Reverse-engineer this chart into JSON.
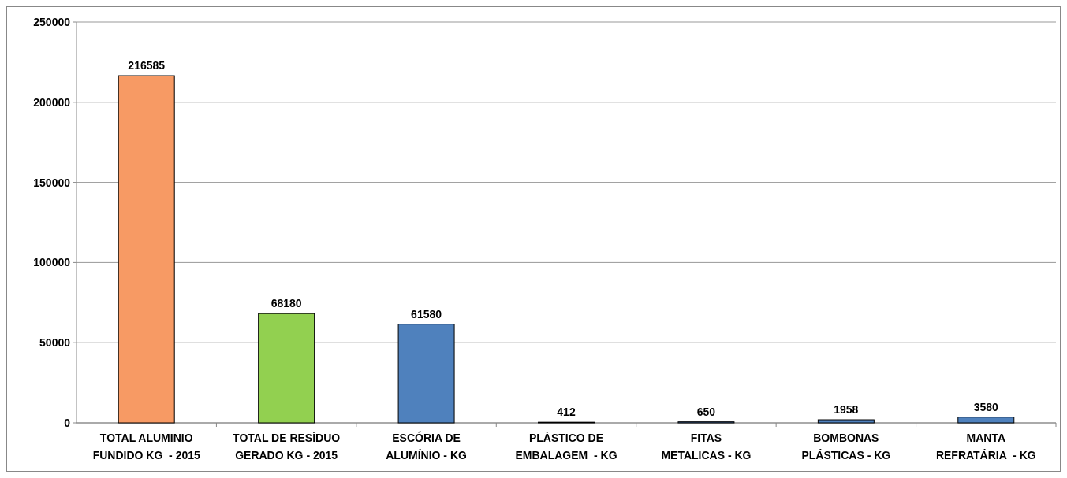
{
  "chart_data": {
    "type": "bar",
    "categories": [
      "TOTAL ALUMINIO\nFUNDIDO KG  - 2015",
      "TOTAL DE RESÍDUO\nGERADO KG - 2015",
      "ESCÓRIA DE\nALUMÍNIO - KG",
      "PLÁSTICO DE\nEMBALAGEM  - KG",
      "FITAS\nMETALICAS - KG",
      "BOMBONAS\nPLÁSTICAS - KG",
      "MANTA\nREFRATÁRIA  - KG"
    ],
    "values": [
      216585,
      68180,
      61580,
      412,
      650,
      1958,
      3580
    ],
    "colors": [
      "#f79a64",
      "#92d050",
      "#4f81bd",
      "#4f81bd",
      "#4f81bd",
      "#4f81bd",
      "#4f81bd"
    ],
    "ylim": [
      0,
      250000
    ],
    "yticks": [
      0,
      50000,
      100000,
      150000,
      200000,
      250000
    ],
    "grid": "y",
    "data_labels": true
  }
}
